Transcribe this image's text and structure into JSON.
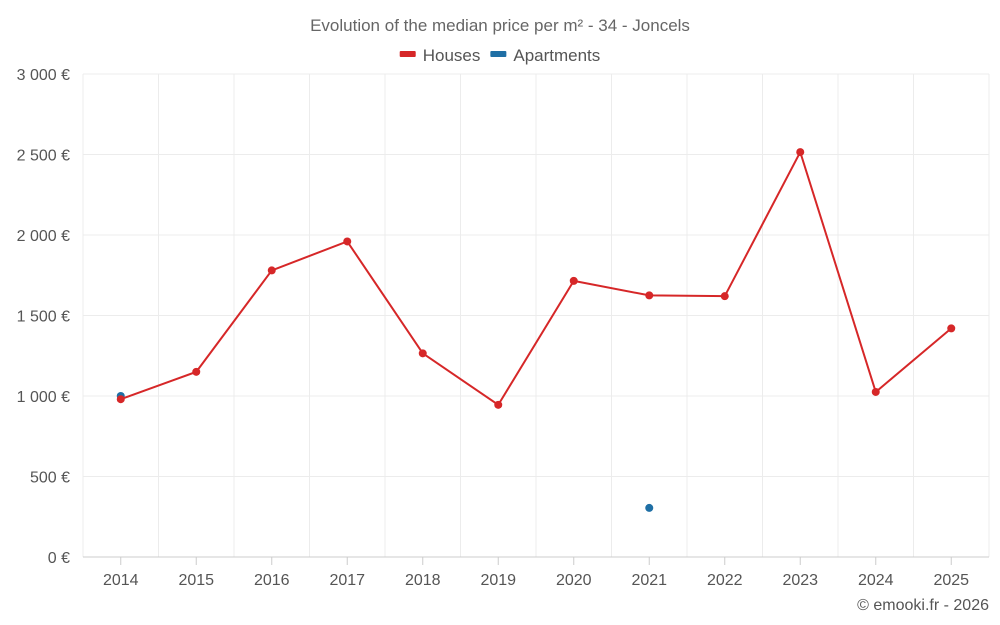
{
  "chart_data": {
    "type": "line",
    "title": "Evolution of the median price per m² - 34 - Joncels",
    "categories": [
      "2014",
      "2015",
      "2016",
      "2017",
      "2018",
      "2019",
      "2020",
      "2021",
      "2022",
      "2023",
      "2024",
      "2025"
    ],
    "series": [
      {
        "name": "Houses",
        "color": "#d62728",
        "values": [
          980,
          1150,
          1780,
          1960,
          1265,
          945,
          1715,
          1625,
          1620,
          2515,
          1025,
          1420
        ]
      },
      {
        "name": "Apartments",
        "color": "#1f6fa5",
        "values": [
          1000,
          null,
          null,
          null,
          null,
          null,
          null,
          305,
          null,
          null,
          null,
          null
        ]
      }
    ],
    "ylim": [
      0,
      3000
    ],
    "yticks": [
      0,
      500,
      1000,
      1500,
      2000,
      2500,
      3000
    ],
    "ytick_labels": [
      "0 €",
      "500 €",
      "1 000 €",
      "1 500 €",
      "2 000 €",
      "2 500 €",
      "3 000 €"
    ],
    "xlabel": "",
    "ylabel": "",
    "legend_position": "top-center",
    "grid": true
  },
  "credit": "© emooki.fr - 2026"
}
